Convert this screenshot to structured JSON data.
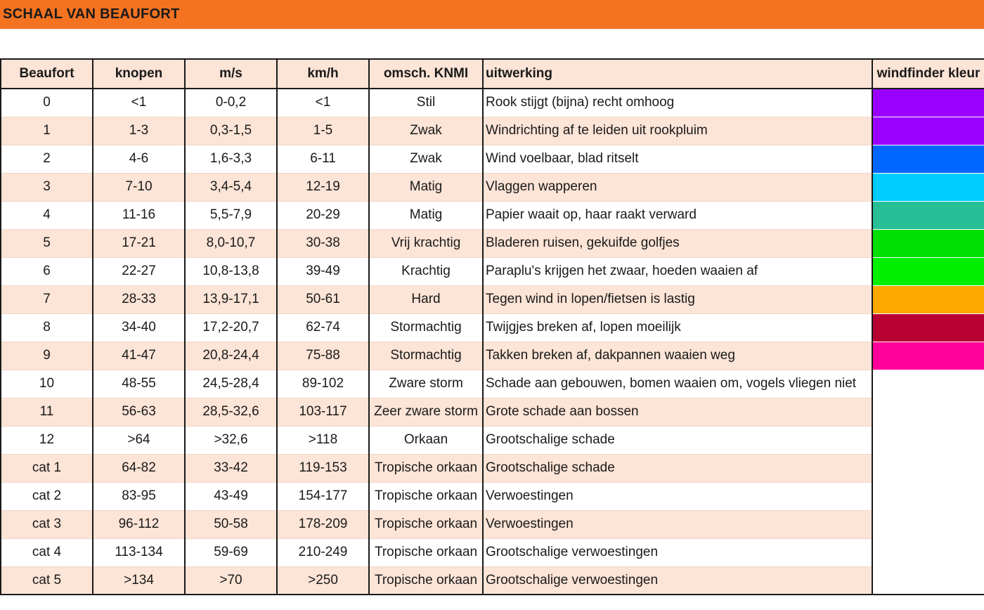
{
  "title": "SCHAAL VAN BEAUFORT",
  "headers": {
    "beaufort": "Beaufort",
    "knopen": "knopen",
    "ms": "m/s",
    "kmh": "km/h",
    "omschrijving": "omsch. KNMI",
    "uitwerking": "uitwerking",
    "kleur": "windfinder kleur"
  },
  "rows": [
    {
      "beaufort": "0",
      "knopen": "<1",
      "ms": "0-0,2",
      "kmh": "<1",
      "omschrijving": "Stil",
      "uitwerking": "Rook stijgt (bijna) recht omhoog",
      "kleur": "#9900FF"
    },
    {
      "beaufort": "1",
      "knopen": "1-3",
      "ms": "0,3-1,5",
      "kmh": "1-5",
      "omschrijving": "Zwak",
      "uitwerking": "Windrichting af te leiden uit rookpluim",
      "kleur": "#9900FF"
    },
    {
      "beaufort": "2",
      "knopen": "4-6",
      "ms": "1,6-3,3",
      "kmh": "6-11",
      "omschrijving": "Zwak",
      "uitwerking": "Wind voelbaar, blad ritselt",
      "kleur": "#0066FF"
    },
    {
      "beaufort": "3",
      "knopen": "7-10",
      "ms": "3,4-5,4",
      "kmh": "12-19",
      "omschrijving": "Matig",
      "uitwerking": "Vlaggen wapperen",
      "kleur": "#00CCFF"
    },
    {
      "beaufort": "4",
      "knopen": "11-16",
      "ms": "5,5-7,9",
      "kmh": "20-29",
      "omschrijving": "Matig",
      "uitwerking": "Papier waait op, haar raakt verward",
      "kleur": "#26BF96"
    },
    {
      "beaufort": "5",
      "knopen": "17-21",
      "ms": "8,0-10,7",
      "kmh": "30-38",
      "omschrijving": "Vrij krachtig",
      "uitwerking": "Bladeren ruisen, gekuifde golfjes",
      "kleur": "#00E000"
    },
    {
      "beaufort": "6",
      "knopen": "22-27",
      "ms": "10,8-13,8",
      "kmh": "39-49",
      "omschrijving": "Krachtig",
      "uitwerking": "Paraplu's krijgen het zwaar, hoeden waaien af",
      "kleur": "#00F000"
    },
    {
      "beaufort": "7",
      "knopen": "28-33",
      "ms": "13,9-17,1",
      "kmh": "50-61",
      "omschrijving": "Hard",
      "uitwerking": "Tegen wind in lopen/fietsen is lastig",
      "kleur": "#FFA800"
    },
    {
      "beaufort": "8",
      "knopen": "34-40",
      "ms": "17,2-20,7",
      "kmh": "62-74",
      "omschrijving": "Stormachtig",
      "uitwerking": "Twijgjes breken af, lopen moeilijk",
      "kleur": "#B80033"
    },
    {
      "beaufort": "9",
      "knopen": "41-47",
      "ms": "20,8-24,4",
      "kmh": "75-88",
      "omschrijving": "Stormachtig",
      "uitwerking": "Takken breken af, dakpannen waaien weg",
      "kleur": "#FF0099"
    },
    {
      "beaufort": "10",
      "knopen": "48-55",
      "ms": "24,5-28,4",
      "kmh": "89-102",
      "omschrijving": "Zware storm",
      "uitwerking": "Schade aan gebouwen, bomen waaien om, vogels vliegen niet",
      "kleur": ""
    },
    {
      "beaufort": "11",
      "knopen": "56-63",
      "ms": "28,5-32,6",
      "kmh": "103-117",
      "omschrijving": "Zeer zware storm",
      "uitwerking": "Grote schade aan bossen",
      "kleur": ""
    },
    {
      "beaufort": "12",
      "knopen": ">64",
      "ms": ">32,6",
      "kmh": ">118",
      "omschrijving": "Orkaan",
      "uitwerking": "Grootschalige schade",
      "kleur": ""
    },
    {
      "beaufort": "cat 1",
      "knopen": "64-82",
      "ms": "33-42",
      "kmh": "119-153",
      "omschrijving": "Tropische orkaan",
      "uitwerking": "Grootschalige schade",
      "kleur": ""
    },
    {
      "beaufort": "cat 2",
      "knopen": "83-95",
      "ms": "43-49",
      "kmh": "154-177",
      "omschrijving": "Tropische orkaan",
      "uitwerking": "Verwoestingen",
      "kleur": ""
    },
    {
      "beaufort": "cat 3",
      "knopen": "96-112",
      "ms": "50-58",
      "kmh": "178-209",
      "omschrijving": "Tropische orkaan",
      "uitwerking": "Verwoestingen",
      "kleur": ""
    },
    {
      "beaufort": "cat 4",
      "knopen": "113-134",
      "ms": "59-69",
      "kmh": "210-249",
      "omschrijving": "Tropische orkaan",
      "uitwerking": "Grootschalige verwoestingen",
      "kleur": ""
    },
    {
      "beaufort": "cat 5",
      "knopen": ">134",
      "ms": ">70",
      "kmh": ">250",
      "omschrijving": "Tropische orkaan",
      "uitwerking": "Grootschalige verwoestingen",
      "kleur": ""
    }
  ]
}
